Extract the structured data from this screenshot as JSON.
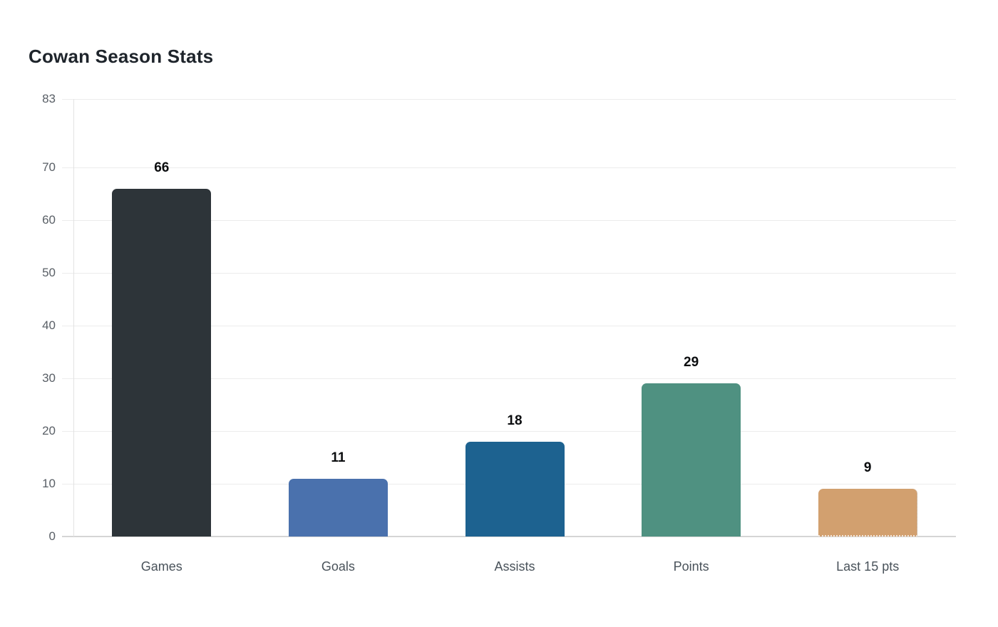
{
  "page": {
    "background_color": "#ffffff"
  },
  "chart": {
    "title": "Cowan Season Stats"
  },
  "chart_data": {
    "type": "bar",
    "title": "Cowan Season Stats",
    "categories": [
      "Games",
      "Goals",
      "Assists",
      "Points",
      "Last 15 pts"
    ],
    "values": [
      66,
      11,
      18,
      29,
      9
    ],
    "value_labels": [
      "66",
      "11",
      "18",
      "29",
      "9"
    ],
    "bar_colors": [
      "#2d3439",
      "#4a71ad",
      "#1d6290",
      "#4f9181",
      "#d2a06f"
    ],
    "y_ticks": [
      83,
      70,
      60,
      50,
      40,
      30,
      20,
      10,
      0
    ],
    "ylim": [
      0,
      83
    ],
    "xlabel": "",
    "ylabel": "",
    "grid": "horizontal-only",
    "legend_position": "none",
    "bar_value_labels_position": "above-bars",
    "last_bar_dotted_edge": true,
    "style_colors": {
      "title": "#1e242b",
      "gridline": "#ececec",
      "baseline": "#d5d5d5",
      "axis_line": "#e2e2e2",
      "y_tick_label": "#595f66",
      "x_axis_label": "#49525a",
      "value_label": "#0b0d0f"
    }
  }
}
